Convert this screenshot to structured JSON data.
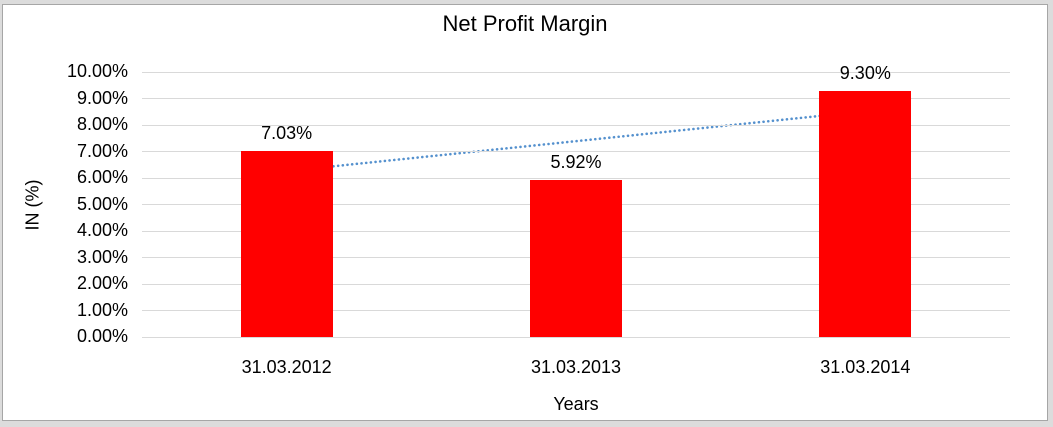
{
  "window": {
    "background_color": "#dcdcdc",
    "frame_border_color": "#a6a6a6",
    "frame_background_color": "#ffffff"
  },
  "chart_data": {
    "type": "bar",
    "title": "Net Profit Margin",
    "xlabel": "Years",
    "ylabel": "IN (%)",
    "categories": [
      "31.03.2012",
      "31.03.2013",
      "31.03.2014"
    ],
    "values": [
      7.03,
      5.92,
      9.3
    ],
    "data_labels": [
      "7.03%",
      "5.92%",
      "9.30%"
    ],
    "ylim": [
      0,
      10
    ],
    "ytick_step": 1,
    "ytick_labels": [
      "0.00%",
      "1.00%",
      "2.00%",
      "3.00%",
      "4.00%",
      "5.00%",
      "6.00%",
      "7.00%",
      "8.00%",
      "9.00%",
      "10.00%"
    ],
    "grid": true,
    "legend": false,
    "bar_color": "#ff0000",
    "gridline_color": "#d9d9d9",
    "text_color": "#000000",
    "trendline": {
      "type": "linear",
      "style": "dotted",
      "color": "#5591ce",
      "start_value": 6.26,
      "end_value": 8.52
    }
  }
}
